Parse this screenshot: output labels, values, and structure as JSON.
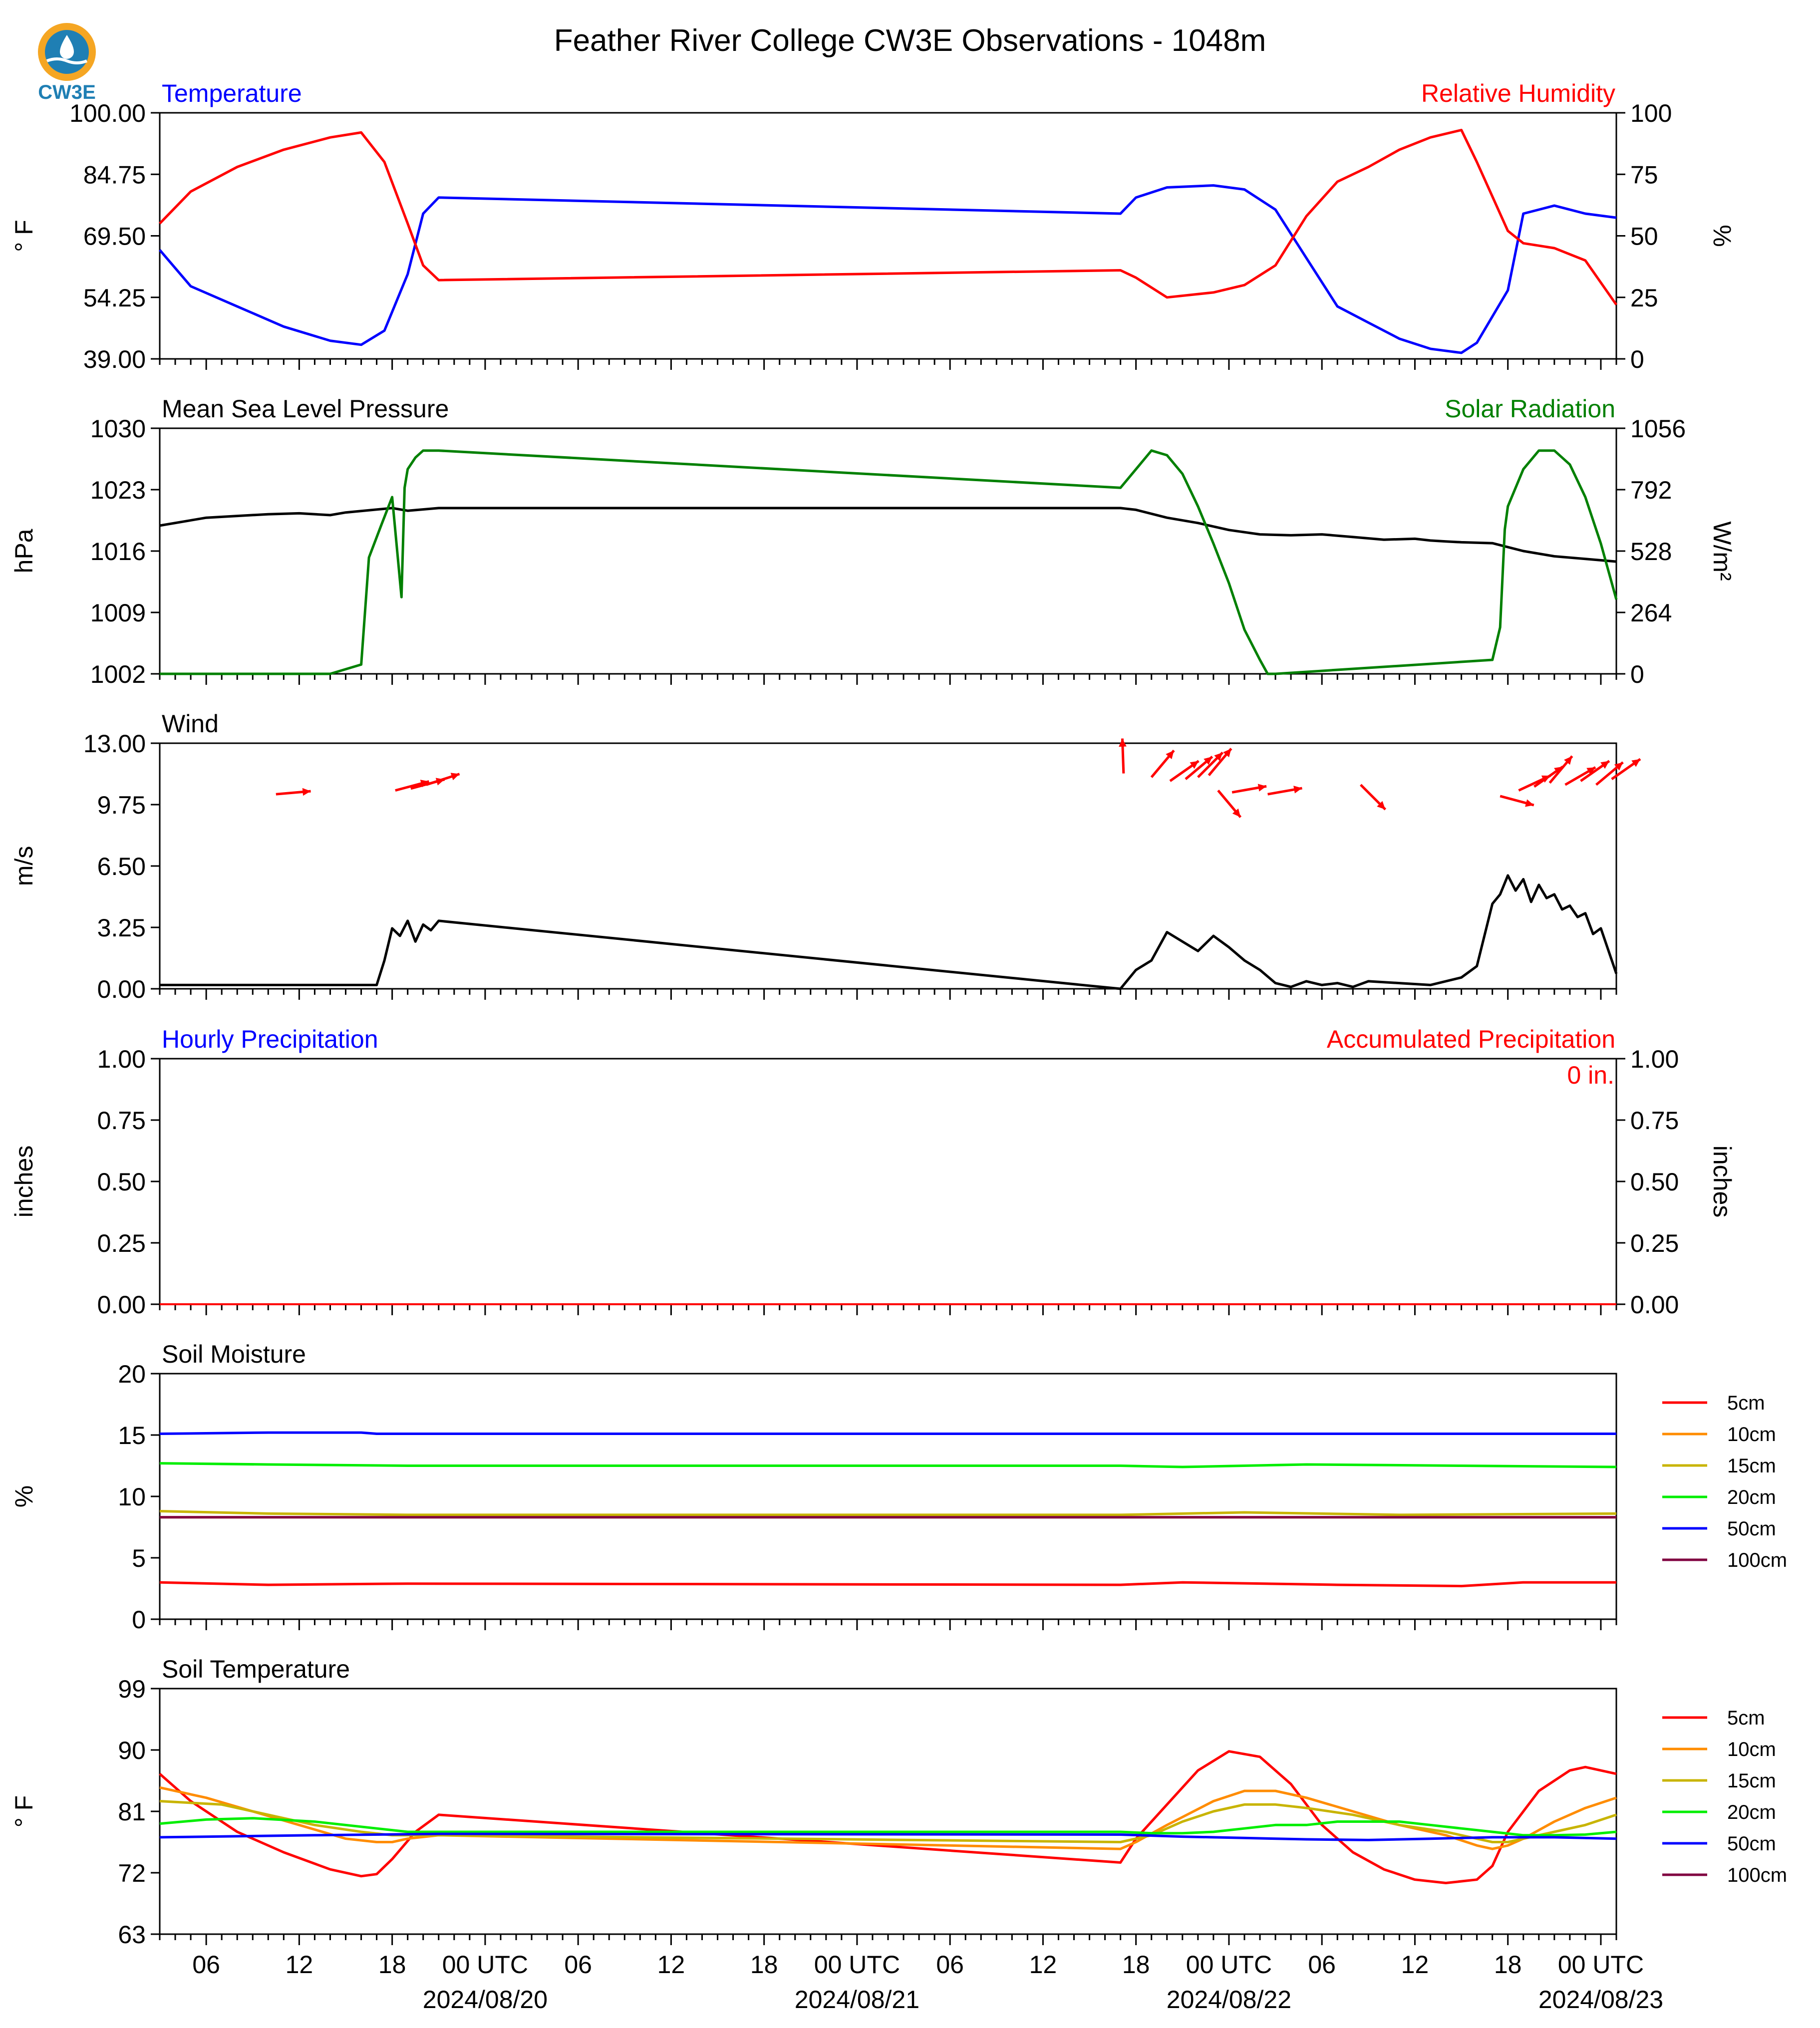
{
  "title": "Feather River College CW3E Observations - 1048m",
  "logo_text": "CW3E",
  "colors": {
    "blue": "#0000ff",
    "red": "#ff0000",
    "green": "#008000",
    "black": "#000000",
    "orange": "#ff8c00",
    "olive": "#c8b400",
    "lime": "#00ee00",
    "purple": "#800040"
  },
  "x_axis": {
    "range_hours": [
      0,
      80
    ],
    "ticks": [
      {
        "h": 3,
        "label": "06"
      },
      {
        "h": 9,
        "label": "12"
      },
      {
        "h": 15,
        "label": "18"
      },
      {
        "h": 21,
        "label": "00 UTC"
      },
      {
        "h": 27,
        "label": "06"
      },
      {
        "h": 33,
        "label": "12"
      },
      {
        "h": 39,
        "label": "18"
      },
      {
        "h": 45,
        "label": "00 UTC"
      },
      {
        "h": 51,
        "label": "06"
      },
      {
        "h": 57,
        "label": "12"
      },
      {
        "h": 63,
        "label": "18"
      },
      {
        "h": 69,
        "label": "00 UTC"
      },
      {
        "h": 75,
        "label": "06"
      },
      {
        "h": 81,
        "label": "12"
      },
      {
        "h": 87,
        "label": "18"
      },
      {
        "h": 93,
        "label": "00 UTC"
      }
    ],
    "dates": [
      {
        "h": 21,
        "label": "2024/08/20"
      },
      {
        "h": 45,
        "label": "2024/08/21"
      },
      {
        "h": 69,
        "label": "2024/08/22"
      },
      {
        "h": 93,
        "label": "2024/08/23"
      }
    ],
    "xlim": [
      0,
      94
    ]
  },
  "panels": {
    "temp": {
      "left_title": "Temperature",
      "right_title": "Relative Humidity",
      "ylabel": "° F",
      "ylabel2": "%",
      "yticks": [
        "39.00",
        "54.25",
        "69.50",
        "84.75",
        "100.00"
      ],
      "yticks2": [
        "0",
        "25",
        "50",
        "75",
        "100"
      ]
    },
    "pres": {
      "left_title": "Mean Sea Level Pressure",
      "right_title": "Solar Radiation",
      "ylabel": "hPa",
      "ylabel2": "W/m²",
      "yticks": [
        "1002",
        "1009",
        "1016",
        "1023",
        "1030"
      ],
      "yticks2": [
        "0",
        "264",
        "528",
        "792",
        "1056"
      ]
    },
    "wind": {
      "left_title": "Wind",
      "ylabel": "m/s",
      "yticks": [
        "0.00",
        "3.25",
        "6.50",
        "9.75",
        "13.00"
      ]
    },
    "precip": {
      "left_title": "Hourly Precipitation",
      "right_title": "Accumulated Precipitation",
      "ylabel": "inches",
      "ylabel2": "inches",
      "yticks": [
        "0.00",
        "0.25",
        "0.50",
        "0.75",
        "1.00"
      ],
      "yticks2": [
        "0.00",
        "0.25",
        "0.50",
        "0.75",
        "1.00"
      ],
      "accum_label": "0 in."
    },
    "soilm": {
      "left_title": "Soil Moisture",
      "ylabel": "%",
      "yticks": [
        "0",
        "5",
        "10",
        "15",
        "20"
      ]
    },
    "soilt": {
      "left_title": "Soil Temperature",
      "ylabel": "° F",
      "yticks": [
        "63",
        "72",
        "81",
        "90",
        "99"
      ]
    }
  },
  "legend_labels": [
    "5cm",
    "10cm",
    "15cm",
    "20cm",
    "50cm",
    "100cm"
  ],
  "chart_data": [
    {
      "type": "line",
      "title": "Temperature",
      "ylabel": "° F",
      "ylim": [
        39,
        100
      ],
      "x_unit": "hours from start",
      "series": [
        {
          "name": "Temperature",
          "color": "#0000ff",
          "x": [
            0,
            2,
            5,
            8,
            11,
            13,
            14.5,
            16,
            17,
            18,
            62,
            63,
            65,
            68,
            70,
            72,
            74,
            76,
            78,
            80,
            82,
            84,
            85,
            87,
            88,
            89,
            90,
            92,
            94
          ],
          "y": [
            66,
            57,
            52,
            47,
            43.5,
            42.5,
            46,
            60,
            75,
            79,
            75,
            79,
            81.5,
            82,
            81,
            76,
            64,
            52,
            48,
            44,
            41.5,
            40.5,
            43,
            56,
            75,
            76,
            77,
            75,
            74
          ]
        }
      ]
    },
    {
      "type": "line",
      "title": "Relative Humidity",
      "ylabel": "%",
      "ylim": [
        0,
        100
      ],
      "x_unit": "hours from start",
      "series": [
        {
          "name": "Relative Humidity",
          "color": "#ff0000",
          "x": [
            0,
            2,
            5,
            8,
            11,
            13,
            14.5,
            16,
            17,
            18,
            62,
            63,
            65,
            68,
            70,
            72,
            74,
            76,
            78,
            80,
            82,
            84,
            85,
            87,
            88,
            89,
            90,
            92,
            94
          ],
          "y": [
            55,
            68,
            78,
            85,
            90,
            92,
            80,
            55,
            38,
            32,
            36,
            33,
            25,
            27,
            30,
            38,
            58,
            72,
            78,
            85,
            90,
            93,
            80,
            52,
            47,
            46,
            45,
            40,
            22
          ]
        }
      ]
    },
    {
      "type": "line",
      "title": "Mean Sea Level Pressure",
      "ylabel": "hPa",
      "ylim": [
        1002,
        1030
      ],
      "x_unit": "hours from start",
      "series": [
        {
          "name": "Mean Sea Level Pressure",
          "color": "#000000",
          "x": [
            0,
            3,
            7,
            9,
            11,
            12,
            15,
            16,
            18,
            30,
            40,
            50,
            62,
            63,
            65,
            67,
            69,
            71,
            73,
            75,
            77,
            79,
            81,
            82,
            83,
            84,
            86,
            88,
            90,
            92,
            94
          ],
          "y": [
            1018.9,
            1019.8,
            1020.2,
            1020.3,
            1020.1,
            1020.4,
            1020.9,
            1020.6,
            1020.9,
            1020.9,
            1020.9,
            1020.9,
            1020.9,
            1020.7,
            1019.8,
            1019.2,
            1018.4,
            1017.9,
            1017.8,
            1017.9,
            1017.6,
            1017.3,
            1017.4,
            1017.2,
            1017.1,
            1017.0,
            1016.9,
            1016.0,
            1015.4,
            1015.1,
            1014.8
          ]
        }
      ]
    },
    {
      "type": "line",
      "title": "Solar Radiation",
      "ylabel": "W/m²",
      "ylim": [
        0,
        1056
      ],
      "x_unit": "hours from start",
      "series": [
        {
          "name": "Solar Radiation",
          "color": "#008000",
          "x": [
            0,
            11,
            13,
            13.5,
            14.3,
            15,
            15.6,
            15.8,
            16,
            16.5,
            17,
            18,
            62,
            63,
            64,
            65,
            66,
            67,
            68,
            69,
            70,
            71,
            71.5,
            72,
            86,
            86.5,
            86.8,
            87,
            88,
            89,
            90,
            91,
            92,
            93,
            94
          ],
          "y": [
            0,
            0,
            40,
            500,
            640,
            760,
            330,
            800,
            880,
            930,
            960,
            960,
            800,
            880,
            960,
            940,
            860,
            720,
            560,
            390,
            190,
            60,
            0,
            0,
            60,
            200,
            620,
            720,
            880,
            960,
            960,
            900,
            760,
            560,
            320
          ]
        }
      ]
    },
    {
      "type": "line",
      "title": "Wind",
      "ylabel": "m/s",
      "ylim": [
        0,
        13
      ],
      "x_unit": "hours from start",
      "series": [
        {
          "name": "Wind speed",
          "color": "#000000",
          "x": [
            0,
            14,
            14.5,
            15,
            15.5,
            16,
            16.5,
            17,
            17.5,
            18,
            62,
            63,
            64,
            65,
            66,
            67,
            68,
            69,
            70,
            71,
            72,
            73,
            74,
            75,
            76,
            77,
            78,
            80,
            82,
            84,
            85,
            86,
            86.5,
            87,
            87.5,
            88,
            88.5,
            89,
            89.5,
            90,
            90.5,
            91,
            91.5,
            92,
            92.5,
            93,
            93.5,
            94
          ],
          "y": [
            0.2,
            0.2,
            1.5,
            3.2,
            2.8,
            3.6,
            2.5,
            3.4,
            3.1,
            3.6,
            0,
            1,
            1.5,
            3,
            2.5,
            2,
            2.8,
            2.2,
            1.5,
            1,
            0.3,
            0.1,
            0.4,
            0.2,
            0.3,
            0.1,
            0.4,
            0.3,
            0.2,
            0.6,
            1.2,
            4.5,
            5,
            6,
            5.2,
            5.8,
            4.6,
            5.5,
            4.8,
            5,
            4.2,
            4.4,
            3.8,
            4,
            2.9,
            3.2,
            2,
            0.8
          ]
        }
      ]
    },
    {
      "type": "scatter",
      "title": "Wind vectors",
      "unit": "arrow direction in degrees toward (0=right, 90=up)",
      "series": [
        {
          "name": "Wind direction",
          "color": "#ff0000",
          "x": [
            7.5,
            15.2,
            16.2,
            17.2,
            62.2,
            64,
            65.2,
            66.2,
            67,
            67.7,
            68.3,
            69.2,
            71.5,
            77.5,
            86.5,
            87.7,
            88.7,
            89.7,
            90.7,
            91.7,
            92.7,
            93.7
          ],
          "y": [
            10.3,
            10.5,
            10.6,
            10.8,
            11.4,
            11.2,
            11,
            11.1,
            11.2,
            11.3,
            10.5,
            10.4,
            10.3,
            10.8,
            10.2,
            10.5,
            10.7,
            10.9,
            10.8,
            11.0,
            10.8,
            11.1
          ],
          "angle": [
            5,
            15,
            15,
            18,
            92,
            50,
            35,
            40,
            45,
            50,
            -50,
            10,
            10,
            -45,
            -15,
            25,
            35,
            50,
            30,
            35,
            40,
            35
          ]
        }
      ]
    },
    {
      "type": "line",
      "title": "Hourly Precipitation",
      "ylabel": "inches",
      "ylim": [
        0,
        1
      ],
      "series": [
        {
          "name": "Hourly Precipitation",
          "color": "#0000ff",
          "x": [
            0,
            94
          ],
          "y": [
            0,
            0
          ]
        },
        {
          "name": "Accumulated Precipitation",
          "color": "#ff0000",
          "x": [
            0,
            94
          ],
          "y": [
            0,
            0
          ]
        }
      ]
    },
    {
      "type": "line",
      "title": "Soil Moisture",
      "ylabel": "%",
      "ylim": [
        0,
        20
      ],
      "x_unit": "hours from start",
      "series": [
        {
          "name": "5cm",
          "color": "#ff0000",
          "x": [
            0,
            7,
            16,
            62,
            66,
            76,
            84,
            88,
            94
          ],
          "y": [
            3.0,
            2.8,
            2.9,
            2.8,
            3.0,
            2.8,
            2.7,
            3.0,
            3.0
          ]
        },
        {
          "name": "10cm",
          "color": "#ff8c00",
          "x": [
            0,
            94
          ],
          "y": [
            8.3,
            8.3
          ]
        },
        {
          "name": "15cm",
          "color": "#c8b400",
          "x": [
            0,
            7,
            16,
            62,
            70,
            80,
            94
          ],
          "y": [
            8.8,
            8.6,
            8.5,
            8.5,
            8.7,
            8.5,
            8.6
          ]
        },
        {
          "name": "20cm",
          "color": "#00ee00",
          "x": [
            0,
            7,
            16,
            62,
            66,
            74,
            84,
            94
          ],
          "y": [
            12.7,
            12.6,
            12.5,
            12.5,
            12.4,
            12.6,
            12.5,
            12.4
          ]
        },
        {
          "name": "50cm",
          "color": "#0000ff",
          "x": [
            0,
            7,
            13,
            14,
            94
          ],
          "y": [
            15.1,
            15.2,
            15.2,
            15.1,
            15.1
          ]
        },
        {
          "name": "100cm",
          "color": "#800040",
          "x": [
            0,
            94
          ],
          "y": [
            8.3,
            8.3
          ]
        }
      ]
    },
    {
      "type": "line",
      "title": "Soil Temperature",
      "ylabel": "° F",
      "ylim": [
        63,
        99
      ],
      "x_unit": "hours from start",
      "series": [
        {
          "name": "5cm",
          "color": "#ff0000",
          "x": [
            0,
            2,
            5,
            8,
            11,
            13,
            14,
            15,
            16.5,
            18,
            62,
            63,
            65,
            67,
            69,
            71,
            73,
            75,
            77,
            79,
            81,
            83,
            85,
            86,
            87,
            89,
            91,
            92,
            94
          ],
          "y": [
            86.5,
            82.5,
            78,
            75,
            72.5,
            71.5,
            71.8,
            74,
            78,
            80.5,
            73.5,
            77,
            82,
            87,
            89.8,
            89,
            85,
            79,
            75,
            72.5,
            71,
            70.5,
            71,
            73,
            78,
            84,
            87,
            87.5,
            86.5
          ]
        },
        {
          "name": "10cm",
          "color": "#ff8c00",
          "x": [
            0,
            3,
            6,
            9,
            12,
            14,
            15,
            16,
            18,
            62,
            63,
            65,
            68,
            70,
            72,
            74,
            77,
            80,
            83,
            85,
            86,
            87,
            88,
            90,
            92,
            94
          ],
          "y": [
            84.5,
            83,
            81,
            79,
            77,
            76.5,
            76.5,
            77,
            77.5,
            75.5,
            76.5,
            79,
            82.5,
            84,
            84,
            83,
            81,
            79,
            77.5,
            76,
            75.5,
            76,
            77,
            79.5,
            81.5,
            83
          ]
        },
        {
          "name": "15cm",
          "color": "#c8b400",
          "x": [
            0,
            4,
            7,
            10,
            13,
            15,
            16,
            18,
            62,
            64,
            66,
            68,
            70,
            72,
            74,
            77,
            80,
            83,
            86,
            87,
            88,
            90,
            92,
            94
          ],
          "y": [
            82.5,
            82,
            80.5,
            79,
            78,
            77.5,
            77.5,
            77.5,
            76.5,
            77.5,
            79.5,
            81,
            82,
            82,
            81.5,
            80.5,
            79,
            78,
            76.5,
            76.5,
            77,
            78,
            79,
            80.5
          ]
        },
        {
          "name": "20cm",
          "color": "#00ee00",
          "x": [
            0,
            3,
            6,
            10,
            14,
            16,
            18,
            62,
            64,
            66,
            68,
            70,
            72,
            74,
            76,
            78,
            80,
            82,
            84,
            86,
            88,
            90,
            92,
            94
          ],
          "y": [
            79.2,
            79.8,
            80,
            79.5,
            78.5,
            78,
            78,
            78,
            77.8,
            77.8,
            78,
            78.5,
            79,
            79,
            79.5,
            79.5,
            79.5,
            79,
            78.5,
            78,
            77.5,
            77.5,
            77.6,
            78
          ]
        },
        {
          "name": "50cm",
          "color": "#0000ff",
          "x": [
            0,
            10,
            18,
            62,
            66,
            70,
            74,
            78,
            82,
            86,
            90,
            94
          ],
          "y": [
            77.2,
            77.5,
            77.7,
            77.6,
            77.3,
            77.1,
            76.9,
            76.8,
            77.0,
            77.2,
            77.2,
            77
          ]
        },
        {
          "name": "100cm",
          "color": "#800040",
          "x": [],
          "y": []
        }
      ]
    }
  ]
}
